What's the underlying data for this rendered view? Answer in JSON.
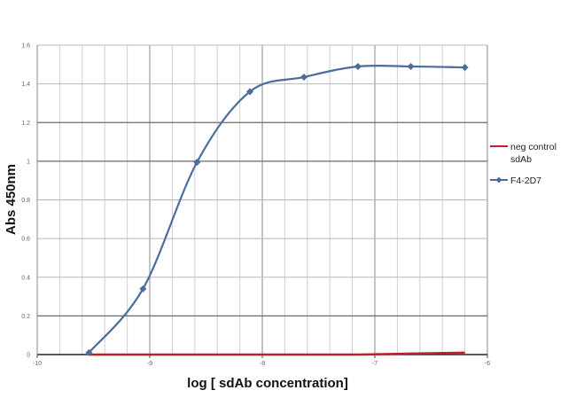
{
  "chart_data": {
    "type": "line",
    "title": "",
    "xlabel": "log [ sdAb concentration]",
    "ylabel": "Abs 450nm",
    "xlim": [
      -10,
      -6
    ],
    "ylim": [
      0,
      1.6
    ],
    "xticks": [
      "-10",
      "-9",
      "-8",
      "-7",
      "-6"
    ],
    "yticks": [
      "0",
      "0.2",
      "0.4",
      "0.6",
      "0.8",
      "1",
      "1.2",
      "1.4",
      "1.6"
    ],
    "grid": true,
    "legend_position": "right",
    "x": [
      -9.54,
      -9.06,
      -8.58,
      -8.11,
      -7.63,
      -7.15,
      -6.68,
      -6.2
    ],
    "series": [
      {
        "name": "neg control sdAb",
        "color": "#c0202a",
        "marker": "none",
        "values": [
          0.0,
          0.0,
          0.0,
          0.0,
          0.0,
          0.0,
          0.005,
          0.01
        ]
      },
      {
        "name": "F4-2D7",
        "color": "#4a6d9a",
        "marker": "diamond",
        "values": [
          0.01,
          0.34,
          0.995,
          1.36,
          1.435,
          1.49,
          1.49,
          1.485
        ]
      }
    ],
    "legend_lines": [
      [
        "neg control",
        "sdAb"
      ],
      [
        "F4-2D7"
      ]
    ]
  }
}
